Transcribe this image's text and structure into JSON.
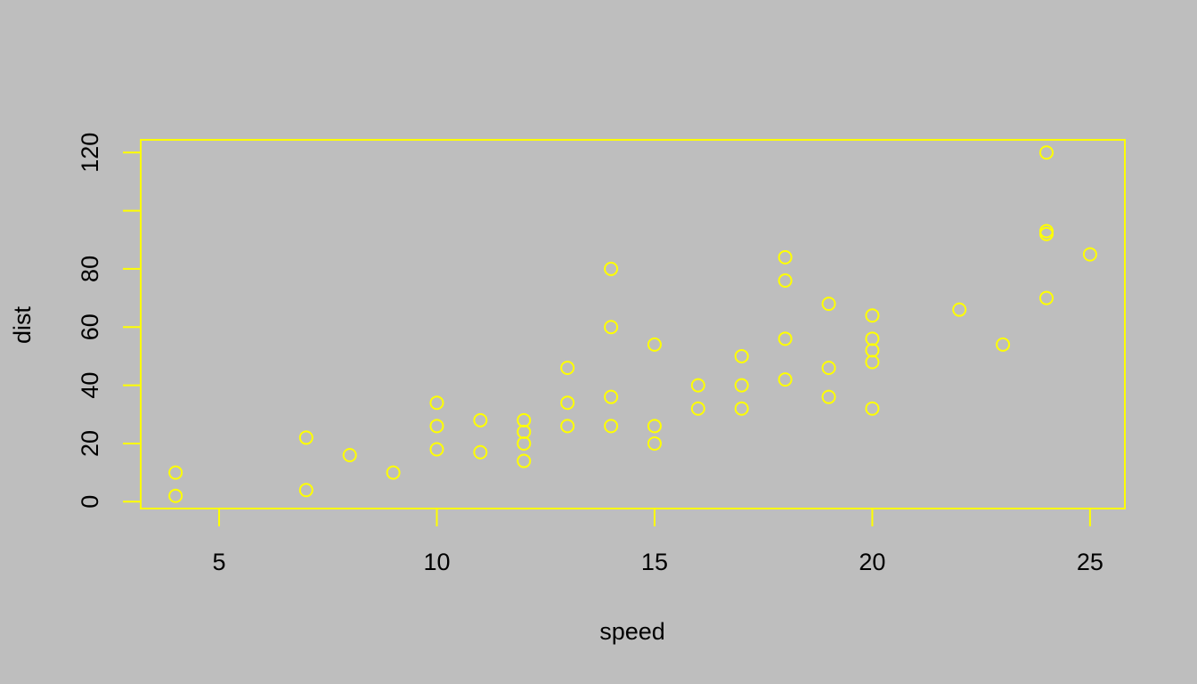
{
  "chart_data": {
    "type": "scatter",
    "title": "",
    "xlabel": "speed",
    "ylabel": "dist",
    "xlim": [
      3.2,
      25.8
    ],
    "ylim": [
      -2.36,
      124.36
    ],
    "xticks": [
      5,
      10,
      15,
      20,
      25
    ],
    "yticks": [
      0,
      20,
      40,
      60,
      80,
      100,
      120
    ],
    "ytick_labels": [
      "0",
      "20",
      "40",
      "60",
      "80",
      "",
      "120"
    ],
    "grid": false,
    "legend": "none",
    "colors": {
      "background": "#bebebe",
      "points": "#ffff00",
      "box": "#ffff00",
      "text": "#000000"
    },
    "marker": "open-circle",
    "points": [
      [
        4,
        2
      ],
      [
        4,
        10
      ],
      [
        7,
        4
      ],
      [
        7,
        22
      ],
      [
        8,
        16
      ],
      [
        9,
        10
      ],
      [
        10,
        18
      ],
      [
        10,
        26
      ],
      [
        10,
        34
      ],
      [
        11,
        17
      ],
      [
        11,
        28
      ],
      [
        12,
        14
      ],
      [
        12,
        20
      ],
      [
        12,
        24
      ],
      [
        12,
        28
      ],
      [
        13,
        26
      ],
      [
        13,
        34
      ],
      [
        13,
        46
      ],
      [
        14,
        26
      ],
      [
        14,
        36
      ],
      [
        14,
        60
      ],
      [
        14,
        80
      ],
      [
        15,
        20
      ],
      [
        15,
        26
      ],
      [
        15,
        54
      ],
      [
        16,
        32
      ],
      [
        16,
        40
      ],
      [
        17,
        32
      ],
      [
        17,
        40
      ],
      [
        17,
        50
      ],
      [
        18,
        42
      ],
      [
        18,
        56
      ],
      [
        18,
        76
      ],
      [
        18,
        84
      ],
      [
        19,
        36
      ],
      [
        19,
        46
      ],
      [
        19,
        68
      ],
      [
        20,
        32
      ],
      [
        20,
        48
      ],
      [
        20,
        52
      ],
      [
        20,
        56
      ],
      [
        20,
        64
      ],
      [
        22,
        66
      ],
      [
        23,
        54
      ],
      [
        24,
        70
      ],
      [
        24,
        92
      ],
      [
        24,
        93
      ],
      [
        24,
        120
      ],
      [
        25,
        85
      ]
    ]
  }
}
